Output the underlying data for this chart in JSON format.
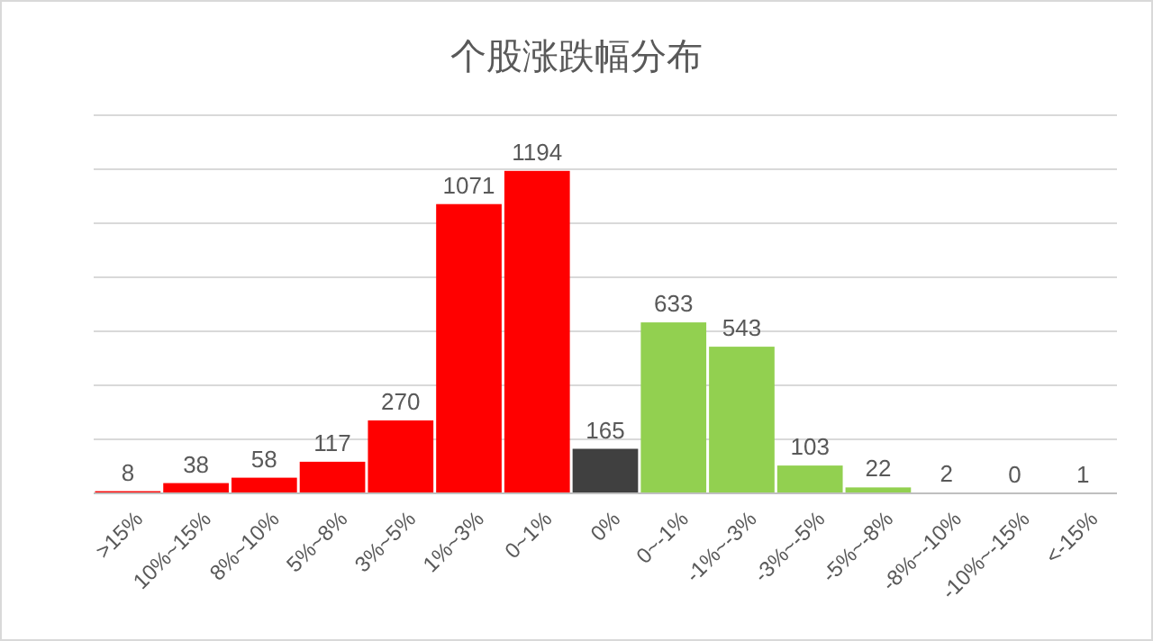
{
  "chart_data": {
    "type": "bar",
    "title": "个股涨跌幅分布",
    "categories": [
      ">15%",
      "10%~15%",
      "8%~10%",
      "5%~8%",
      "3%~5%",
      "1%~3%",
      "0~1%",
      "0%",
      "0~-1%",
      "-1%~-3%",
      "-3%~-5%",
      "-5%~-8%",
      "-8%~-10%",
      "-10%~-15%",
      "<-15%"
    ],
    "values": [
      8,
      38,
      58,
      117,
      270,
      1071,
      1194,
      165,
      633,
      543,
      103,
      22,
      2,
      0,
      1
    ],
    "colors": [
      "#ff0000",
      "#ff0000",
      "#ff0000",
      "#ff0000",
      "#ff0000",
      "#ff0000",
      "#ff0000",
      "#404040",
      "#92d050",
      "#92d050",
      "#92d050",
      "#92d050",
      "#92d050",
      "#92d050",
      "#92d050"
    ],
    "ylim": [
      0,
      1400
    ],
    "yticks": [
      {
        "value": 0,
        "label": null
      },
      {
        "value": 200,
        "label": null
      },
      {
        "value": 400,
        "label": null
      },
      {
        "value": 600,
        "label": null
      },
      {
        "value": 800,
        "label": null
      },
      {
        "value": 1000,
        "label": null
      },
      {
        "value": 1200,
        "label": null
      },
      {
        "value": 1400,
        "label": null
      }
    ],
    "grid": "y",
    "data_labels": true,
    "tick_labels": "x"
  }
}
